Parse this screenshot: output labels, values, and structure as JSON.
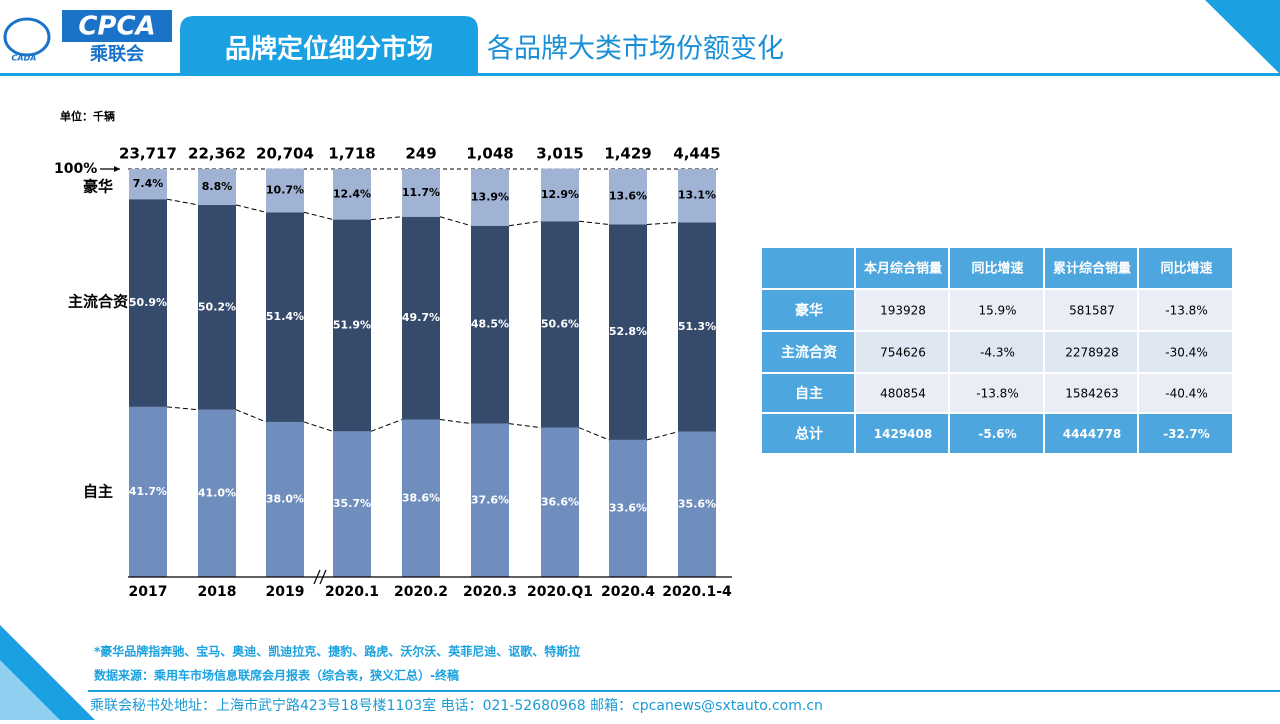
{
  "header": {
    "logo_text": "CPCA",
    "logo_cn": "乘联会",
    "logo_small": "CADA",
    "title": "品牌定位细分市场",
    "subtitle": "各品牌大类市场份额变化"
  },
  "chart_data": {
    "type": "stacked_bar",
    "unit": "单位：千辆",
    "categories": [
      "2017",
      "2018",
      "2019",
      "2020.1",
      "2020.2",
      "2020.3",
      "2020.Q1",
      "2020.4",
      "2020.1-4"
    ],
    "totals": {
      "values": [
        23717,
        22362,
        20704,
        1718,
        249,
        1048,
        3015,
        1429,
        4445
      ],
      "value_labels": [
        "23,717",
        "22,362",
        "20,704",
        "1,718",
        "249",
        "1,048",
        "3,015",
        "1,429",
        "4,445"
      ]
    },
    "series": [
      {
        "name": "自主",
        "color": "#6f8dbd",
        "values": [
          41.7,
          41.0,
          38.0,
          35.7,
          38.6,
          37.6,
          36.6,
          33.6,
          35.6
        ],
        "value_labels": [
          "41.7%",
          "41.0%",
          "38.0%",
          "35.7%",
          "38.6%",
          "37.6%",
          "36.6%",
          "33.6%",
          "35.6%"
        ]
      },
      {
        "name": "主流合资",
        "color": "#364b6c",
        "values": [
          50.9,
          50.2,
          51.4,
          51.9,
          49.7,
          48.5,
          50.6,
          52.8,
          51.3
        ],
        "value_labels": [
          "50.9%",
          "50.2%",
          "51.4%",
          "51.9%",
          "49.7%",
          "48.5%",
          "50.6%",
          "52.8%",
          "51.3%"
        ]
      },
      {
        "name": "豪华",
        "color": "#a1b3d4",
        "values": [
          7.4,
          8.8,
          10.7,
          12.4,
          11.7,
          13.9,
          12.9,
          13.6,
          13.1
        ],
        "value_labels": [
          "7.4%",
          "8.8%",
          "10.7%",
          "12.4%",
          "11.7%",
          "13.9%",
          "12.9%",
          "13.6%",
          "13.1%"
        ]
      }
    ],
    "ylim": [
      0,
      100
    ],
    "yticks": [
      {
        "value": 100,
        "label": "100%"
      }
    ]
  },
  "table": {
    "header": [
      "本月综合销量",
      "同比增速",
      "累计综合销量",
      "同比增速"
    ],
    "rows": [
      [
        "豪华",
        "193928",
        "15.9%",
        "581587",
        "-13.8%"
      ],
      [
        "主流合资",
        "754626",
        "-4.3%",
        "2278928",
        "-30.4%"
      ],
      [
        "自主",
        "480854",
        "-13.8%",
        "1584263",
        "-40.4%"
      ],
      [
        "总计",
        "1429408",
        "-5.6%",
        "4444778",
        "-32.7%"
      ]
    ]
  },
  "notes": [
    "*豪华品牌指奔驰、宝马、奥迪、凯迪拉克、捷豹、路虎、沃尔沃、英菲尼迪、讴歌、特斯拉",
    "数据来源：乘用车市场信息联席会月报表（综合表，狭义汇总）-终稿"
  ],
  "footer": "乘联会秘书处地址：上海市武宁路423号18号楼1103室  电话：021-52680968   邮箱：cpcanews@sxtauto.com.cn"
}
